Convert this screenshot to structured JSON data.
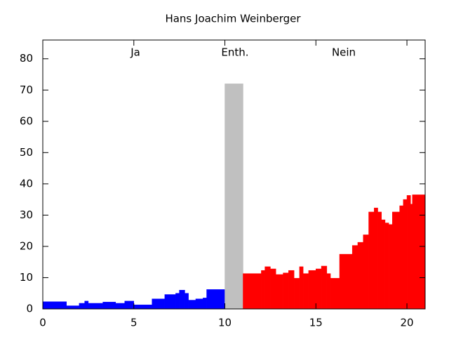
{
  "chart_data": {
    "type": "area",
    "title": "Hans Joachim Weinberger",
    "xlim": [
      0,
      21
    ],
    "xticks": [
      0,
      5,
      10,
      15,
      20
    ],
    "ylim": [
      0,
      86
    ],
    "yticks": [
      0,
      10,
      20,
      30,
      40,
      50,
      60,
      70,
      80
    ],
    "series": [
      {
        "name": "Ja",
        "color": "#0000ff",
        "bins": [
          0,
          1.3,
          2,
          2.3,
          2.5,
          3.3,
          4,
          4.5,
          5,
          6,
          6.7,
          7.3,
          7.5,
          7.8,
          8,
          8.4,
          8.8,
          9,
          10
        ],
        "values": [
          2.3,
          1,
          1.8,
          2.5,
          1.8,
          2.2,
          1.8,
          2.5,
          1.3,
          3.2,
          4.6,
          5,
          6,
          5,
          2.8,
          3.2,
          3.5,
          6.2
        ]
      },
      {
        "name": "Enth.",
        "color": "#c0c0c0",
        "bins": [
          10,
          11
        ],
        "values": [
          72
        ]
      },
      {
        "name": "Nein",
        "color": "#ff0000",
        "bins": [
          11,
          12,
          12.2,
          12.5,
          12.8,
          13.2,
          13.5,
          13.8,
          14.1,
          14.3,
          14.6,
          15,
          15.3,
          15.6,
          15.8,
          16,
          16.3,
          17,
          17.3,
          17.6,
          17.9,
          18.2,
          18.4,
          18.6,
          18.8,
          19,
          19.2,
          19.6,
          19.8,
          20,
          20.2,
          20.3,
          21
        ],
        "values": [
          11.3,
          12.3,
          13.5,
          12.8,
          11,
          11.5,
          12.3,
          9.8,
          13.5,
          11.3,
          12.3,
          12.8,
          13.7,
          11.3,
          9.8,
          9.8,
          17.5,
          20.3,
          21.3,
          23.7,
          31,
          32.3,
          31,
          28.5,
          27.5,
          27,
          31,
          33,
          35,
          36.3,
          33.5,
          36.5
        ]
      }
    ]
  }
}
